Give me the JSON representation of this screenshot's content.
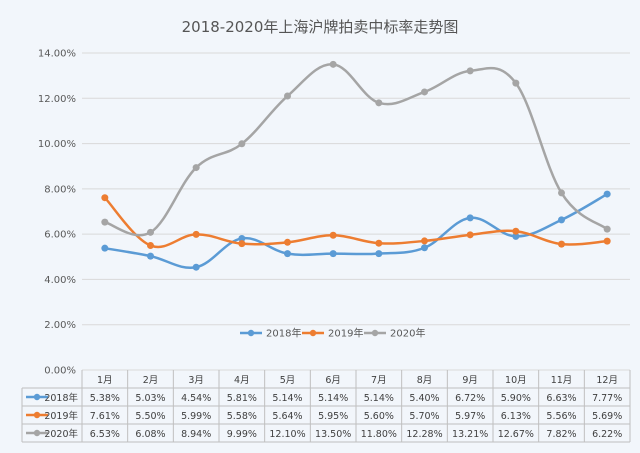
{
  "chart_data": {
    "type": "line",
    "title": "2018-2020年上海沪牌拍卖中标率走势图",
    "categories": [
      "1月",
      "2月",
      "3月",
      "4月",
      "5月",
      "6月",
      "7月",
      "8月",
      "9月",
      "10月",
      "11月",
      "12月"
    ],
    "series": [
      {
        "name": "2018年",
        "color": "#5b9bd5",
        "values": [
          5.38,
          5.03,
          4.54,
          5.81,
          5.14,
          5.14,
          5.14,
          5.4,
          6.72,
          5.9,
          6.63,
          7.77
        ],
        "labels": [
          "5.38%",
          "5.03%",
          "4.54%",
          "5.81%",
          "5.14%",
          "5.14%",
          "5.14%",
          "5.40%",
          "6.72%",
          "5.90%",
          "6.63%",
          "7.77%"
        ]
      },
      {
        "name": "2019年",
        "color": "#ed7d31",
        "values": [
          7.61,
          5.5,
          5.99,
          5.58,
          5.64,
          5.95,
          5.6,
          5.7,
          5.97,
          6.13,
          5.56,
          5.69
        ],
        "labels": [
          "7.61%",
          "5.50%",
          "5.99%",
          "5.58%",
          "5.64%",
          "5.95%",
          "5.60%",
          "5.70%",
          "5.97%",
          "6.13%",
          "5.56%",
          "5.69%"
        ]
      },
      {
        "name": "2020年",
        "color": "#a5a5a5",
        "values": [
          6.53,
          6.08,
          8.94,
          9.99,
          12.1,
          13.5,
          11.8,
          12.28,
          13.21,
          12.67,
          7.82,
          6.22
        ],
        "labels": [
          "6.53%",
          "6.08%",
          "8.94%",
          "9.99%",
          "12.10%",
          "13.50%",
          "11.80%",
          "12.28%",
          "13.21%",
          "12.67%",
          "7.82%",
          "6.22%"
        ]
      }
    ],
    "yticks": [
      "0.00%",
      "2.00%",
      "4.00%",
      "6.00%",
      "8.00%",
      "10.00%",
      "12.00%",
      "14.00%"
    ],
    "ylim": [
      0,
      14
    ],
    "legend_position": "inside-bottom-center",
    "data_table": true,
    "grid": true
  }
}
